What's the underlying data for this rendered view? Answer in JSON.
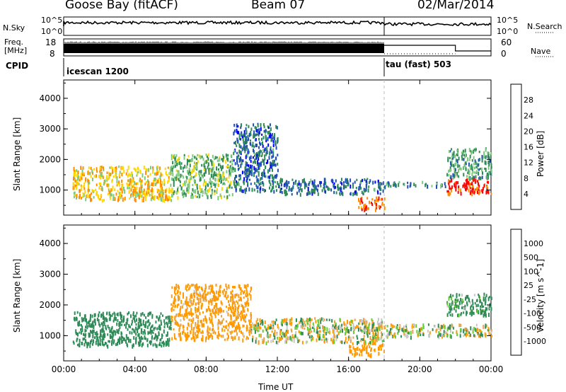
{
  "header": {
    "station": "Goose Bay (fitACF)",
    "beam": "Beam 07",
    "date": "02/Mar/2014"
  },
  "top_panels": {
    "nsky_label": "N.Sky",
    "nsky_ticks": [
      "10^5",
      "10^0"
    ],
    "nsearch_label": "N.Search",
    "nsearch_ticks": [
      "10^5",
      "10^0"
    ],
    "freq_label_1": "Freq.",
    "freq_label_2": "[MHz]",
    "freq_ticks": [
      "18",
      "8"
    ],
    "nave_label": "Nave",
    "nave_ticks": [
      "60",
      "0"
    ],
    "cpid_label": "CPID",
    "cpid_segments": [
      {
        "name": "icescan 1200",
        "start_hour": 0
      },
      {
        "name": "tau (fast) 503",
        "start_hour": 18
      }
    ]
  },
  "chart_data": [
    {
      "type": "heatmap",
      "title": "",
      "ylabel": "Slant Range [km]",
      "xlabel": "",
      "ylim": [
        180,
        4600
      ],
      "yticks": [
        "4000",
        "3000",
        "2000",
        "1000"
      ],
      "colorbar": {
        "label": "Power [dB]",
        "ticks": [
          "28",
          "24",
          "20",
          "16",
          "12",
          "8",
          "4"
        ],
        "colors": [
          "#0000ff",
          "#1f4fb3",
          "#2e8b57",
          "#7fc97f",
          "#ffd700",
          "#ff8c00",
          "#ff0000"
        ]
      },
      "series": [
        {
          "x_start": 0.5,
          "x_end": 6.0,
          "y_low": 700,
          "y_high": 1800,
          "level": 20
        },
        {
          "x_start": 6.0,
          "x_end": 9.5,
          "y_low": 800,
          "y_high": 2200,
          "level": 14
        },
        {
          "x_start": 9.5,
          "x_end": 12.0,
          "y_low": 1000,
          "y_high": 3200,
          "level": 8
        },
        {
          "x_start": 12.0,
          "x_end": 18.0,
          "y_low": 900,
          "y_high": 1400,
          "level": 8
        },
        {
          "x_start": 16.5,
          "x_end": 18.0,
          "y_low": 400,
          "y_high": 800,
          "level": 26
        },
        {
          "x_start": 18.0,
          "x_end": 21.5,
          "y_low": 1150,
          "y_high": 1300,
          "level": 10
        },
        {
          "x_start": 21.5,
          "x_end": 24.0,
          "y_low": 900,
          "y_high": 1400,
          "level": 28
        },
        {
          "x_start": 21.5,
          "x_end": 24.0,
          "y_low": 1400,
          "y_high": 2400,
          "level": 12
        }
      ]
    },
    {
      "type": "heatmap",
      "title": "",
      "ylabel": "Slant Range [km]",
      "xlabel": "Time UT",
      "ylim": [
        180,
        4600
      ],
      "yticks": [
        "4000",
        "3000",
        "2000",
        "1000"
      ],
      "xticks": [
        "00:00",
        "04:00",
        "08:00",
        "12:00",
        "16:00",
        "20:00",
        "00:00"
      ],
      "colorbar": {
        "label": "Velocity [m s^-1]",
        "ticks": [
          "1000",
          "500",
          "100",
          "25",
          "-25",
          "-100",
          "-500",
          "-1000"
        ],
        "colors": [
          "#ff0000",
          "#ff5a00",
          "#ff9a00",
          "#e8a040",
          "#c8c8c8",
          "#c8c8c8",
          "#66cc33",
          "#2e8b57",
          "#1e6ebf",
          "#1a3fb0"
        ]
      },
      "series": [
        {
          "x_start": 0.5,
          "x_end": 6.0,
          "y_low": 700,
          "y_high": 1800,
          "velocity": 300
        },
        {
          "x_start": 6.0,
          "x_end": 10.5,
          "y_low": 900,
          "y_high": 2700,
          "velocity": -200
        },
        {
          "x_start": 10.5,
          "x_end": 18.0,
          "y_low": 800,
          "y_high": 1600,
          "velocity": 0
        },
        {
          "x_start": 16.0,
          "x_end": 18.0,
          "y_low": 400,
          "y_high": 800,
          "velocity": -300
        },
        {
          "x_start": 18.0,
          "x_end": 24.0,
          "y_low": 1000,
          "y_high": 1400,
          "velocity": 0
        },
        {
          "x_start": 21.5,
          "x_end": 24.0,
          "y_low": 1700,
          "y_high": 2400,
          "velocity": 200
        }
      ]
    }
  ]
}
